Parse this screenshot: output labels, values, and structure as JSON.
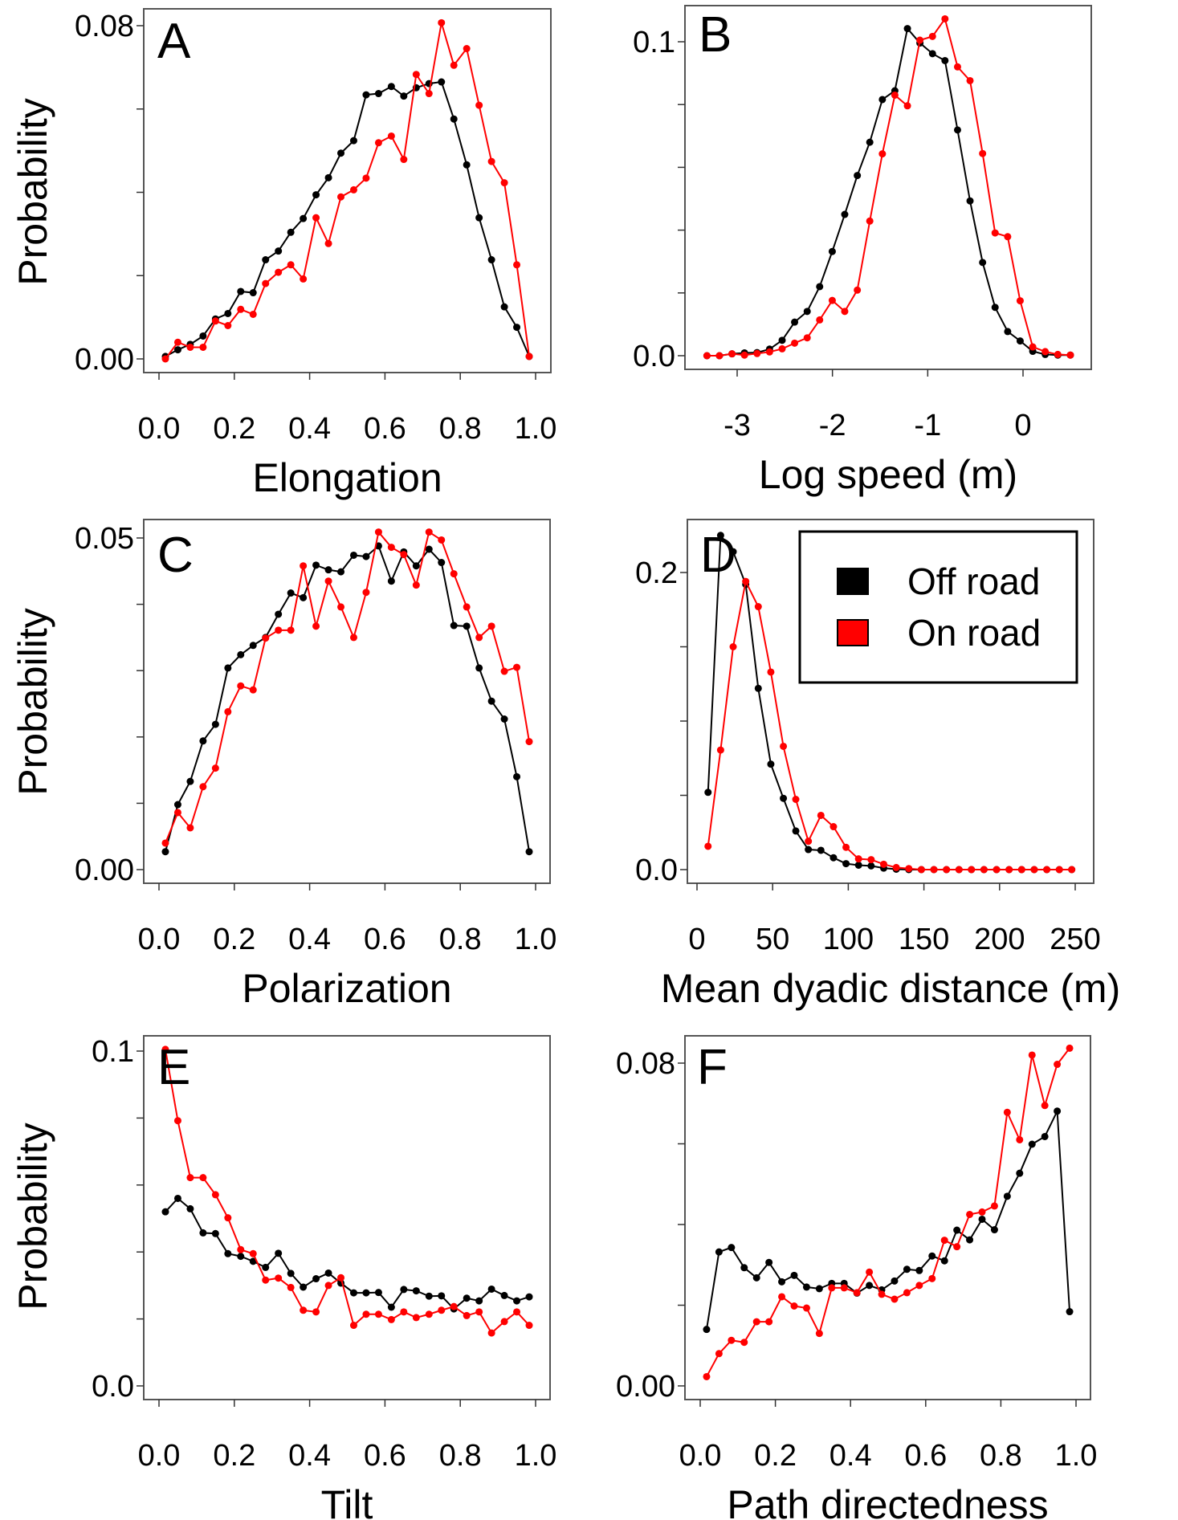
{
  "figure": {
    "y_axis_title": "Probability",
    "legend": {
      "entries": [
        {
          "label": "Off road",
          "color": "#000000"
        },
        {
          "label": "On road",
          "color": "#ff0000"
        }
      ]
    }
  },
  "chart_data": [
    {
      "type": "line",
      "panel": "A",
      "xlabel": "Elongation",
      "ylabel": "Probability",
      "xlim": [
        0.0,
        1.0
      ],
      "ylim": [
        0.0,
        0.08
      ],
      "x_ticks": [
        0.0,
        0.2,
        0.4,
        0.6,
        0.8,
        1.0
      ],
      "x_tick_labels": [
        "0.0",
        "0.2",
        "0.4",
        "0.6",
        "0.8",
        "1.0"
      ],
      "y_ticks": [
        0.0,
        0.02,
        0.04,
        0.06,
        0.08
      ],
      "y_tick_labels": [
        "0.00",
        "",
        "",
        "",
        "0.08"
      ],
      "x": [
        0.017,
        0.05,
        0.083,
        0.117,
        0.15,
        0.183,
        0.217,
        0.25,
        0.283,
        0.317,
        0.35,
        0.383,
        0.417,
        0.45,
        0.483,
        0.517,
        0.55,
        0.583,
        0.617,
        0.65,
        0.683,
        0.717,
        0.75,
        0.783,
        0.817,
        0.85,
        0.883,
        0.917,
        0.95,
        0.983
      ],
      "series": [
        {
          "name": "Off road",
          "color": "#000000",
          "values": [
            0.0006,
            0.0022,
            0.0035,
            0.0055,
            0.0096,
            0.0109,
            0.0162,
            0.0159,
            0.0238,
            0.0259,
            0.0304,
            0.0337,
            0.0394,
            0.0435,
            0.0494,
            0.0524,
            0.0634,
            0.0637,
            0.0654,
            0.0631,
            0.0651,
            0.0661,
            0.0665,
            0.0576,
            0.0466,
            0.0339,
            0.0238,
            0.0125,
            0.0076,
            0.0006
          ]
        },
        {
          "name": "On road",
          "color": "#ff0000",
          "values": [
            0.0,
            0.004,
            0.0028,
            0.0028,
            0.0091,
            0.008,
            0.0119,
            0.0107,
            0.0181,
            0.0208,
            0.0226,
            0.0192,
            0.0339,
            0.0277,
            0.0389,
            0.0406,
            0.0434,
            0.0519,
            0.0535,
            0.0479,
            0.0683,
            0.0637,
            0.0807,
            0.0705,
            0.0745,
            0.0609,
            0.0474,
            0.0423,
            0.0226,
            0.0006
          ]
        }
      ]
    },
    {
      "type": "line",
      "panel": "B",
      "xlabel": "Log speed (m)",
      "ylabel": "",
      "xlim": [
        -3.5,
        0.65
      ],
      "ylim": [
        0.0,
        0.1
      ],
      "x_ticks": [
        -3,
        -2,
        -1,
        0
      ],
      "x_tick_labels": [
        "-3",
        "-2",
        "-1",
        "0"
      ],
      "y_ticks": [
        0.0,
        0.02,
        0.04,
        0.06,
        0.08,
        0.1
      ],
      "y_tick_labels": [
        "0.0",
        "",
        "",
        "",
        "",
        "0.1"
      ],
      "x": [
        -3.317,
        -3.186,
        -3.054,
        -2.923,
        -2.791,
        -2.66,
        -2.528,
        -2.397,
        -2.265,
        -2.134,
        -2.002,
        -1.871,
        -1.739,
        -1.608,
        -1.476,
        -1.345,
        -1.213,
        -1.082,
        -0.95,
        -0.819,
        -0.687,
        -0.556,
        -0.424,
        -0.293,
        -0.161,
        -0.03,
        0.102,
        0.233,
        0.365,
        0.497
      ],
      "series": [
        {
          "name": "Off road",
          "color": "#000000",
          "values": [
            0.0,
            0.0,
            0.0006,
            0.0009,
            0.001,
            0.0021,
            0.0049,
            0.0107,
            0.0141,
            0.022,
            0.0332,
            0.045,
            0.0574,
            0.068,
            0.0816,
            0.0844,
            0.1042,
            0.0996,
            0.0962,
            0.094,
            0.0719,
            0.0493,
            0.0297,
            0.0154,
            0.0077,
            0.0047,
            0.0014,
            0.0004,
            0.0002,
            0.0002
          ]
        },
        {
          "name": "On road",
          "color": "#ff0000",
          "values": [
            0.0,
            0.0,
            0.0006,
            0.0002,
            0.0007,
            0.0012,
            0.0022,
            0.004,
            0.0057,
            0.0114,
            0.0176,
            0.0141,
            0.0209,
            0.0429,
            0.0643,
            0.083,
            0.0796,
            0.1005,
            0.1017,
            0.1073,
            0.092,
            0.0876,
            0.0644,
            0.0391,
            0.0379,
            0.0175,
            0.0028,
            0.0013,
            0.0004,
            0.0002
          ]
        }
      ]
    },
    {
      "type": "line",
      "panel": "C",
      "xlabel": "Polarization",
      "ylabel": "Probability",
      "xlim": [
        0.0,
        1.0
      ],
      "ylim": [
        0.0,
        0.05
      ],
      "x_ticks": [
        0.0,
        0.2,
        0.4,
        0.6,
        0.8,
        1.0
      ],
      "x_tick_labels": [
        "0.0",
        "0.2",
        "0.4",
        "0.6",
        "0.8",
        "1.0"
      ],
      "y_ticks": [
        0.0,
        0.01,
        0.02,
        0.03,
        0.04,
        0.05
      ],
      "y_tick_labels": [
        "0.00",
        "",
        "",
        "",
        "",
        "0.05"
      ],
      "x": [
        0.017,
        0.05,
        0.083,
        0.117,
        0.15,
        0.183,
        0.217,
        0.25,
        0.283,
        0.317,
        0.35,
        0.383,
        0.417,
        0.45,
        0.483,
        0.517,
        0.55,
        0.583,
        0.617,
        0.65,
        0.683,
        0.717,
        0.75,
        0.783,
        0.817,
        0.85,
        0.883,
        0.917,
        0.95,
        0.983
      ],
      "series": [
        {
          "name": "Off road",
          "color": "#000000",
          "values": [
            0.0027,
            0.0098,
            0.0133,
            0.0194,
            0.0219,
            0.0304,
            0.0324,
            0.0338,
            0.035,
            0.0385,
            0.0417,
            0.041,
            0.0459,
            0.0452,
            0.0449,
            0.0474,
            0.0472,
            0.0488,
            0.0435,
            0.0479,
            0.0458,
            0.0483,
            0.0463,
            0.0368,
            0.0367,
            0.0304,
            0.0254,
            0.0227,
            0.014,
            0.0027
          ]
        },
        {
          "name": "On road",
          "color": "#ff0000",
          "values": [
            0.004,
            0.0086,
            0.0063,
            0.0125,
            0.0153,
            0.0238,
            0.0277,
            0.0271,
            0.0349,
            0.0361,
            0.0361,
            0.0458,
            0.0367,
            0.0435,
            0.0396,
            0.035,
            0.0418,
            0.0509,
            0.0486,
            0.0475,
            0.0429,
            0.0509,
            0.0497,
            0.0446,
            0.0396,
            0.035,
            0.0367,
            0.0299,
            0.0305,
            0.0193
          ]
        }
      ]
    },
    {
      "type": "line",
      "panel": "D",
      "xlabel": "Mean dyadic distance (m)",
      "ylabel": "",
      "xlim": [
        0,
        250
      ],
      "ylim": [
        0.0,
        0.2
      ],
      "x_ticks": [
        0,
        50,
        100,
        150,
        200,
        250
      ],
      "x_tick_labels": [
        "0",
        "50",
        "100",
        "150",
        "200",
        "250"
      ],
      "y_ticks": [
        0.0,
        0.05,
        0.1,
        0.15,
        0.2
      ],
      "y_tick_labels": [
        "0.0",
        "",
        "",
        "",
        "0.2"
      ],
      "legend": "top-right",
      "x": [
        7.3,
        15.6,
        23.9,
        32.2,
        40.5,
        48.8,
        57.1,
        65.3,
        73.6,
        81.9,
        90.2,
        98.5,
        106.8,
        115.1,
        123.4,
        131.7,
        140.0,
        148.3,
        156.6,
        164.9,
        173.2,
        181.4,
        189.7,
        198.0,
        206.3,
        214.6,
        222.9,
        231.2,
        239.5,
        247.7
      ],
      "series": [
        {
          "name": "Off road",
          "color": "#000000",
          "values": [
            0.052,
            0.225,
            0.214,
            0.192,
            0.122,
            0.071,
            0.048,
            0.026,
            0.0135,
            0.013,
            0.008,
            0.004,
            0.003,
            0.0025,
            0.001,
            0.0003,
            0,
            0,
            0,
            0,
            0,
            0,
            0,
            0,
            0,
            0,
            0,
            0,
            0,
            0
          ]
        },
        {
          "name": "On road",
          "color": "#ff0000",
          "values": [
            0.0157,
            0.0805,
            0.15,
            0.194,
            0.177,
            0.133,
            0.083,
            0.0473,
            0.0191,
            0.0365,
            0.0289,
            0.015,
            0.0072,
            0.0067,
            0.0036,
            0.0014,
            0.0007,
            0,
            0,
            0,
            0,
            0,
            0,
            0,
            0,
            0,
            0,
            0,
            0,
            0
          ]
        }
      ]
    },
    {
      "type": "line",
      "panel": "E",
      "xlabel": "Tilt",
      "ylabel": "Probability",
      "xlim": [
        0.0,
        1.0
      ],
      "ylim": [
        0.0,
        0.1
      ],
      "x_ticks": [
        0.0,
        0.2,
        0.4,
        0.6,
        0.8,
        1.0
      ],
      "x_tick_labels": [
        "0.0",
        "0.2",
        "0.4",
        "0.6",
        "0.8",
        "1.0"
      ],
      "y_ticks": [
        0.0,
        0.02,
        0.04,
        0.06,
        0.08,
        0.1
      ],
      "y_tick_labels": [
        "0.0",
        "",
        "",
        "",
        "",
        "0.1"
      ],
      "x": [
        0.017,
        0.05,
        0.083,
        0.117,
        0.15,
        0.183,
        0.217,
        0.25,
        0.283,
        0.317,
        0.35,
        0.383,
        0.417,
        0.45,
        0.483,
        0.517,
        0.55,
        0.583,
        0.617,
        0.65,
        0.683,
        0.717,
        0.75,
        0.783,
        0.817,
        0.85,
        0.883,
        0.917,
        0.95,
        0.983
      ],
      "series": [
        {
          "name": "Off road",
          "color": "#000000",
          "values": [
            0.052,
            0.056,
            0.0529,
            0.0457,
            0.0455,
            0.0395,
            0.0387,
            0.0372,
            0.0354,
            0.0396,
            0.0336,
            0.0295,
            0.032,
            0.0337,
            0.0307,
            0.0278,
            0.0278,
            0.0279,
            0.0235,
            0.0288,
            0.0284,
            0.0268,
            0.0269,
            0.023,
            0.0262,
            0.0254,
            0.0289,
            0.027,
            0.0254,
            0.0266
          ]
        },
        {
          "name": "On road",
          "color": "#ff0000",
          "values": [
            0.1005,
            0.0792,
            0.0622,
            0.0622,
            0.0571,
            0.0502,
            0.0407,
            0.0395,
            0.0316,
            0.0322,
            0.0294,
            0.0226,
            0.0221,
            0.03,
            0.0323,
            0.0181,
            0.0214,
            0.0214,
            0.0198,
            0.0221,
            0.0204,
            0.0214,
            0.0226,
            0.0237,
            0.021,
            0.0221,
            0.0158,
            0.0192,
            0.0221,
            0.0181
          ]
        }
      ]
    },
    {
      "type": "line",
      "panel": "F",
      "xlabel": "Path directedness",
      "ylabel": "",
      "xlim": [
        0.0,
        1.0
      ],
      "ylim": [
        0.0,
        0.08
      ],
      "x_ticks": [
        0.0,
        0.2,
        0.4,
        0.6,
        0.8,
        1.0
      ],
      "x_tick_labels": [
        "0.0",
        "0.2",
        "0.4",
        "0.6",
        "0.8",
        "1.0"
      ],
      "y_ticks": [
        0.0,
        0.02,
        0.04,
        0.06,
        0.08
      ],
      "y_tick_labels": [
        "0.00",
        "",
        "",
        "",
        "0.08"
      ],
      "x": [
        0.017,
        0.05,
        0.083,
        0.117,
        0.15,
        0.183,
        0.217,
        0.25,
        0.283,
        0.317,
        0.35,
        0.383,
        0.417,
        0.45,
        0.483,
        0.517,
        0.55,
        0.583,
        0.617,
        0.65,
        0.683,
        0.717,
        0.75,
        0.783,
        0.817,
        0.85,
        0.883,
        0.917,
        0.95,
        0.983
      ],
      "series": [
        {
          "name": "Off road",
          "color": "#000000",
          "values": [
            0.014,
            0.0332,
            0.0343,
            0.0293,
            0.0268,
            0.0306,
            0.0258,
            0.0274,
            0.0245,
            0.0241,
            0.0254,
            0.0254,
            0.023,
            0.0249,
            0.0238,
            0.026,
            0.0289,
            0.0286,
            0.0322,
            0.031,
            0.0386,
            0.0362,
            0.0413,
            0.0387,
            0.047,
            0.0527,
            0.0599,
            0.0618,
            0.0681,
            0.0184
          ]
        },
        {
          "name": "On road",
          "color": "#ff0000",
          "values": [
            0.0023,
            0.008,
            0.0113,
            0.0108,
            0.0159,
            0.0159,
            0.0221,
            0.0198,
            0.0193,
            0.013,
            0.0243,
            0.0243,
            0.0231,
            0.0282,
            0.0227,
            0.0215,
            0.0231,
            0.0249,
            0.0266,
            0.0361,
            0.0345,
            0.0425,
            0.0431,
            0.0446,
            0.0678,
            0.061,
            0.082,
            0.0695,
            0.0797,
            0.0837
          ]
        }
      ]
    }
  ]
}
